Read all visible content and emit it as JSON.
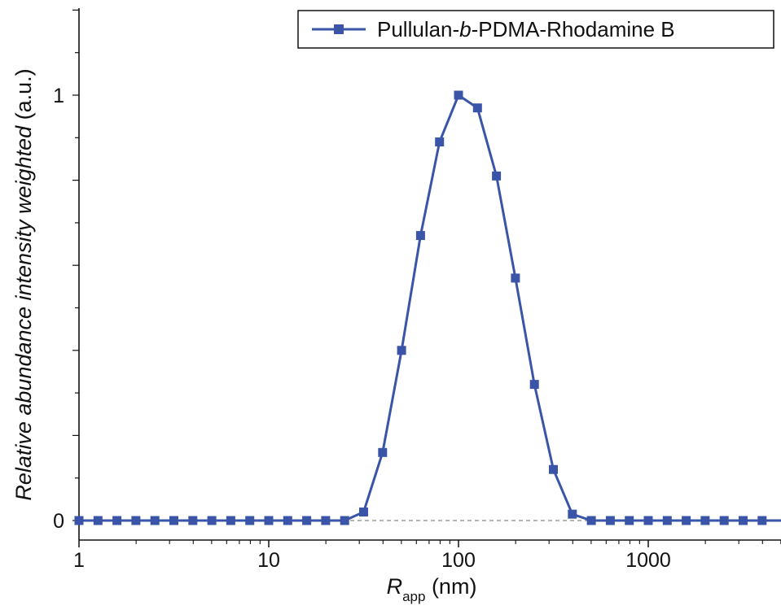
{
  "chart_data": {
    "type": "line",
    "title": "",
    "xlabel": {
      "main": "R",
      "subscript": "app",
      "unit": " (nm)"
    },
    "ylabel": {
      "main": "Relative abundance intensity weighted",
      "unit": " (a.u.)"
    },
    "xscale": "log",
    "xlim": [
      1,
      5000
    ],
    "ylim": [
      0,
      1.2
    ],
    "xticks": [
      {
        "value": 1,
        "label": "1"
      },
      {
        "value": 10,
        "label": "10"
      },
      {
        "value": 100,
        "label": "100"
      },
      {
        "value": 1000,
        "label": "1000"
      }
    ],
    "yticks": [
      {
        "value": 0,
        "label": "0"
      },
      {
        "value": 1,
        "label": "1"
      }
    ],
    "grid": false,
    "legend_position": "top-right",
    "baseline": {
      "value": 0,
      "style": "dashed"
    },
    "series": [
      {
        "name": "Pullulan-b-PDMA-Rhodamine B",
        "legend": {
          "before": "Pullulan-",
          "italic": "b",
          "after": "-PDMA-Rhodamine B"
        },
        "color": "#3a55a8",
        "marker": "square",
        "x": [
          1,
          1.259,
          1.585,
          1.995,
          2.512,
          3.162,
          3.981,
          5.012,
          6.31,
          7.943,
          10,
          12.59,
          15.85,
          19.95,
          25.12,
          31.62,
          39.81,
          50.12,
          63.1,
          79.43,
          100,
          125.9,
          158.5,
          199.5,
          251.2,
          316.2,
          398.1,
          501.2,
          631,
          794.3,
          1000,
          1259,
          1585,
          1995,
          2512,
          3162,
          3981,
          5012
        ],
        "y": [
          0,
          0,
          0,
          0,
          0,
          0,
          0,
          0,
          0,
          0,
          0,
          0,
          0,
          0,
          0,
          0.02,
          0.16,
          0.4,
          0.67,
          0.89,
          1.0,
          0.97,
          0.81,
          0.57,
          0.32,
          0.12,
          0.015,
          0,
          0,
          0,
          0,
          0,
          0,
          0,
          0,
          0,
          0,
          0
        ]
      }
    ]
  }
}
